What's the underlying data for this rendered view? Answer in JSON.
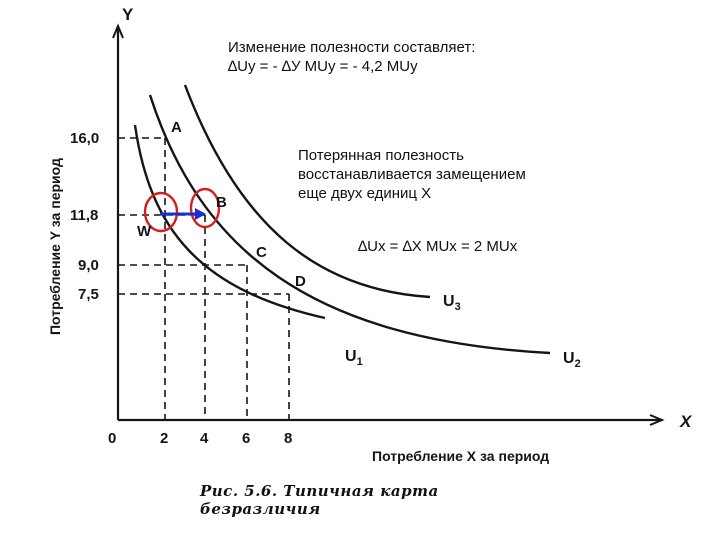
{
  "axes": {
    "y_letter": "Y",
    "x_letter": "X",
    "origin": "0",
    "ylabel": "Потребление Y за период",
    "xlabel": "Потребление X за период",
    "yticks": [
      "16,0",
      "11,8",
      "9,0",
      "7,5"
    ],
    "xticks": [
      "2",
      "4",
      "6",
      "8"
    ]
  },
  "points": [
    "A",
    "B",
    "C",
    "D",
    "W"
  ],
  "curves": [
    "U1",
    "U2",
    "U3"
  ],
  "curve_labels": {
    "u1": {
      "main": "U",
      "sub": "1"
    },
    "u2": {
      "main": "U",
      "sub": "2"
    },
    "u3": {
      "main": "U",
      "sub": "3"
    }
  },
  "annotations": {
    "utility_change_line1": "Изменение полезности составляет:",
    "utility_change_line2": "∆Uy = - ∆У MUy = - 4,2 MUy",
    "lost_utility_line1": "Потерянная полезность",
    "lost_utility_line2": "восстанавливается замещением",
    "lost_utility_line3": "еще двух единиц Х",
    "formula_x": "∆Ux = ∆X MUx = 2 MUx"
  },
  "caption": "Рис. 5.6. Типичная карта безразличия",
  "colors": {
    "ink": "#151515",
    "highlight_circle": "#d62020",
    "arrow": "#1a2fd0"
  }
}
